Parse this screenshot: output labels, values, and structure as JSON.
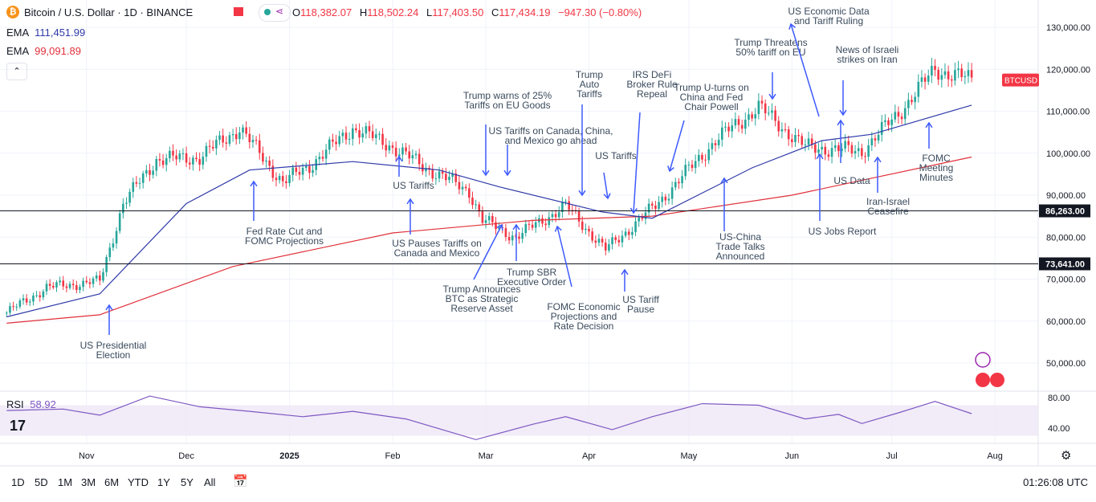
{
  "header": {
    "symbol_title": "Bitcoin / U.S. Dollar · 1D · BINANCE",
    "ohlc": [
      {
        "label": "O",
        "value": "118,382.07"
      },
      {
        "label": "H",
        "value": "118,502.24"
      },
      {
        "label": "L",
        "value": "117,403.50"
      },
      {
        "label": "C",
        "value": "117,434.19"
      },
      {
        "label": "",
        "value": "−947.30 (−0.80%)"
      }
    ]
  },
  "indicators": {
    "ema1": {
      "label": "EMA",
      "value": "111,451.99",
      "color": "#2f3aa8"
    },
    "ema2": {
      "label": "EMA",
      "value": "99,091.89",
      "color": "#e0303a"
    },
    "rsi": {
      "label": "RSI",
      "value": "58.92",
      "color": "#7e57c2"
    }
  },
  "price_axis": {
    "ticks": [
      "130,000.00",
      "120,000.00",
      "110,000.00",
      "100,000.00",
      "90,000.00",
      "80,000.00",
      "70,000.00",
      "60,000.00",
      "50,000.00"
    ],
    "tick_values": [
      130000,
      120000,
      110000,
      100000,
      90000,
      80000,
      70000,
      60000,
      50000
    ],
    "current_label": "BTCUSD",
    "level_labels": [
      {
        "text": "86,263.00",
        "value": 86263
      },
      {
        "text": "73,641.00",
        "value": 73641
      }
    ]
  },
  "rsi_axis": {
    "ticks": [
      "80.00",
      "40.00"
    ],
    "tick_values": [
      80,
      40
    ]
  },
  "time_axis": {
    "labels": [
      "Nov",
      "Dec",
      "2025",
      "Feb",
      "Mar",
      "Apr",
      "May",
      "Jun",
      "Jul",
      "Aug"
    ],
    "bold_index": 2
  },
  "timeframes": [
    "1D",
    "5D",
    "1M",
    "3M",
    "6M",
    "YTD",
    "1Y",
    "5Y",
    "All"
  ],
  "clock": "01:26:08 UTC",
  "colors": {
    "up": "#26a69a",
    "down": "#f23645",
    "annotation": "#3d5afe",
    "rsi_band": "#ede7f6"
  },
  "chart_data": {
    "type": "candlestick",
    "x": [
      "2024-10",
      "2024-11",
      "2024-12",
      "2025-01",
      "2025-02",
      "2025-03",
      "2025-04",
      "2025-05",
      "2025-06",
      "2025-07"
    ],
    "close_path": [
      [
        "2024-10-08",
        62000
      ],
      [
        "2024-10-20",
        68000
      ],
      [
        "2024-11-05",
        69500
      ],
      [
        "2024-11-12",
        88000
      ],
      [
        "2024-11-22",
        98500
      ],
      [
        "2024-12-05",
        99000
      ],
      [
        "2024-12-17",
        106000
      ],
      [
        "2024-12-30",
        93000
      ],
      [
        "2025-01-07",
        97000
      ],
      [
        "2025-01-20",
        106000
      ],
      [
        "2025-01-31",
        102000
      ],
      [
        "2025-02-10",
        97000
      ],
      [
        "2025-02-24",
        91000
      ],
      [
        "2025-02-28",
        84000
      ],
      [
        "2025-03-10",
        80000
      ],
      [
        "2025-03-25",
        87500
      ],
      [
        "2025-04-06",
        77000
      ],
      [
        "2025-04-21",
        87500
      ],
      [
        "2025-05-09",
        103000
      ],
      [
        "2025-05-22",
        111000
      ],
      [
        "2025-06-05",
        101500
      ],
      [
        "2025-06-22",
        100500
      ],
      [
        "2025-07-03",
        109500
      ],
      [
        "2025-07-14",
        120000
      ],
      [
        "2025-07-25",
        117434
      ]
    ],
    "ema_fast": [
      [
        "2024-10-08",
        61000
      ],
      [
        "2024-11-05",
        66500
      ],
      [
        "2024-12-01",
        88000
      ],
      [
        "2024-12-20",
        96000
      ],
      [
        "2025-01-20",
        98000
      ],
      [
        "2025-02-15",
        96000
      ],
      [
        "2025-03-05",
        92000
      ],
      [
        "2025-04-05",
        86000
      ],
      [
        "2025-04-20",
        84500
      ],
      [
        "2025-05-20",
        96500
      ],
      [
        "2025-06-10",
        103000
      ],
      [
        "2025-06-25",
        104500
      ],
      [
        "2025-07-25",
        111452
      ]
    ],
    "ema_slow": [
      [
        "2024-10-08",
        59500
      ],
      [
        "2024-11-05",
        61500
      ],
      [
        "2024-12-15",
        73000
      ],
      [
        "2025-02-01",
        81000
      ],
      [
        "2025-03-15",
        84000
      ],
      [
        "2025-04-20",
        85000
      ],
      [
        "2025-06-01",
        90000
      ],
      [
        "2025-07-25",
        99092
      ]
    ],
    "rsi": [
      [
        "2024-10-08",
        63
      ],
      [
        "2024-10-25",
        65
      ],
      [
        "2024-11-05",
        57
      ],
      [
        "2024-11-20",
        82
      ],
      [
        "2024-12-05",
        68
      ],
      [
        "2024-12-20",
        62
      ],
      [
        "2025-01-05",
        55
      ],
      [
        "2025-01-20",
        62
      ],
      [
        "2025-02-05",
        52
      ],
      [
        "2025-02-26",
        25
      ],
      [
        "2025-03-15",
        45
      ],
      [
        "2025-03-25",
        55
      ],
      [
        "2025-04-08",
        38
      ],
      [
        "2025-04-20",
        55
      ],
      [
        "2025-05-05",
        72
      ],
      [
        "2025-05-22",
        70
      ],
      [
        "2025-06-05",
        52
      ],
      [
        "2025-06-15",
        58
      ],
      [
        "2025-06-22",
        46
      ],
      [
        "2025-07-03",
        60
      ],
      [
        "2025-07-14",
        75
      ],
      [
        "2025-07-25",
        59
      ]
    ],
    "horizontal_levels": [
      86263,
      73641
    ],
    "annotations": [
      {
        "text": [
          "US Presidential",
          "Election"
        ],
        "date": "2024-11-05"
      },
      {
        "text": [
          "Fed Rate Cut and",
          "FOMC Projections"
        ],
        "date": "2024-12-18"
      },
      {
        "text": [
          "US Tariffs"
        ],
        "date": "2025-02-01"
      },
      {
        "text": [
          "US Pauses Tariffs on",
          "Canada and Mexico"
        ],
        "date": "2025-02-03"
      },
      {
        "text": [
          "Trump warns of 25%",
          "Tariffs on EU Goods"
        ],
        "date": "2025-02-26"
      },
      {
        "text": [
          "US Tariffs on Canada, China,",
          "and Mexico go ahead"
        ],
        "date": "2025-03-04"
      },
      {
        "text": [
          "Trump Announces",
          "BTC as Strategic",
          "Reserve Asset"
        ],
        "date": "2025-03-06"
      },
      {
        "text": [
          "Trump SBR",
          "Executive Order"
        ],
        "date": "2025-03-07"
      },
      {
        "text": [
          "Trump",
          "Auto",
          "Tariffs"
        ],
        "date": "2025-03-26"
      },
      {
        "text": [
          "FOMC Economic",
          "Projections and",
          "Rate Decision"
        ],
        "date": "2025-03-19"
      },
      {
        "text": [
          "US Tariffs"
        ],
        "date": "2025-04-02"
      },
      {
        "text": [
          "IRS DeFi",
          "Broker Rule",
          "Repeal"
        ],
        "date": "2025-04-10"
      },
      {
        "text": [
          "US Tariff",
          "Pause"
        ],
        "date": "2025-04-09"
      },
      {
        "text": [
          "Trump U-turns on",
          "China and Fed",
          "Chair Powell"
        ],
        "date": "2025-04-22"
      },
      {
        "text": [
          "US-China",
          "Trade Talks",
          "Announced"
        ],
        "date": "2025-05-08"
      },
      {
        "text": [
          "Trump Threatens",
          "50% tariff on EU"
        ],
        "date": "2025-05-23"
      },
      {
        "text": [
          "US Economic Data",
          "and Tariff Ruling"
        ],
        "date": "2025-05-29"
      },
      {
        "text": [
          "US Jobs Report"
        ],
        "date": "2025-06-06"
      },
      {
        "text": [
          "News of Israeli",
          "strikes on Iran"
        ],
        "date": "2025-06-13"
      },
      {
        "text": [
          "US Data"
        ],
        "date": "2025-06-12"
      },
      {
        "text": [
          "Iran-Israel",
          "Ceasefire"
        ],
        "date": "2025-06-24"
      },
      {
        "text": [
          "FOMC",
          "Meeting",
          "Minutes"
        ],
        "date": "2025-07-09"
      }
    ]
  }
}
